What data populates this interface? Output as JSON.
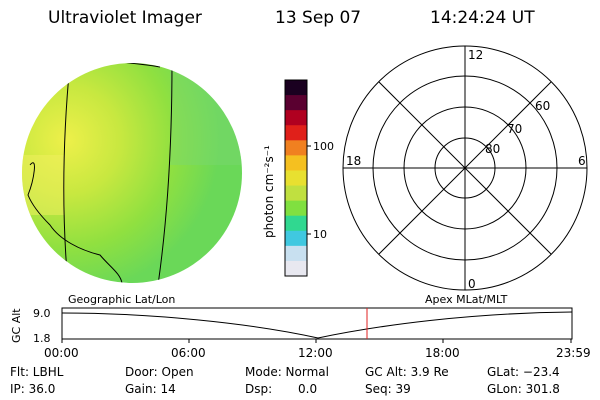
{
  "header": {
    "title": "Ultraviolet Imager",
    "date": "13 Sep 07",
    "time": "14:24:24 UT"
  },
  "colorbar": {
    "unit_label": "photon cm⁻²s⁻¹",
    "tick_100": "100",
    "tick_10": "10",
    "colors": [
      "#1a0020",
      "#5a0030",
      "#b00020",
      "#e0201a",
      "#f08020",
      "#f5c020",
      "#e8e030",
      "#c0e040",
      "#80e040",
      "#30d890",
      "#40c8e0",
      "#c8e0f0",
      "#e8e8f0"
    ]
  },
  "polar": {
    "lat_labels": [
      "80",
      "70",
      "60"
    ],
    "mlt_top": "12",
    "mlt_bottom": "0",
    "mlt_left": "18",
    "mlt_right": "6"
  },
  "altitude_panel": {
    "left_label": "Geographic Lat/Lon",
    "right_label": "Apex MLat/MLT",
    "y_axis_label": "GC Alt",
    "y_top_tick": "9.0",
    "y_bottom_tick": "1.8",
    "x_ticks": [
      "00:00",
      "06:00",
      "12:00",
      "18:00",
      "23:59"
    ],
    "current_marker_color": "#e02020"
  },
  "info": {
    "flt": "Flt: LBHL",
    "door": "Door: Open",
    "mode": "Mode: Normal",
    "gc_alt": "GC Alt: 3.9 Re",
    "glat": "GLat: −23.4",
    "ip": "IP: 36.0",
    "gain": "Gain: 14",
    "dsp_label": "Dsp:",
    "dsp_value": "0.0",
    "seq": "Seq: 39",
    "glon": "GLon: 301.8"
  }
}
